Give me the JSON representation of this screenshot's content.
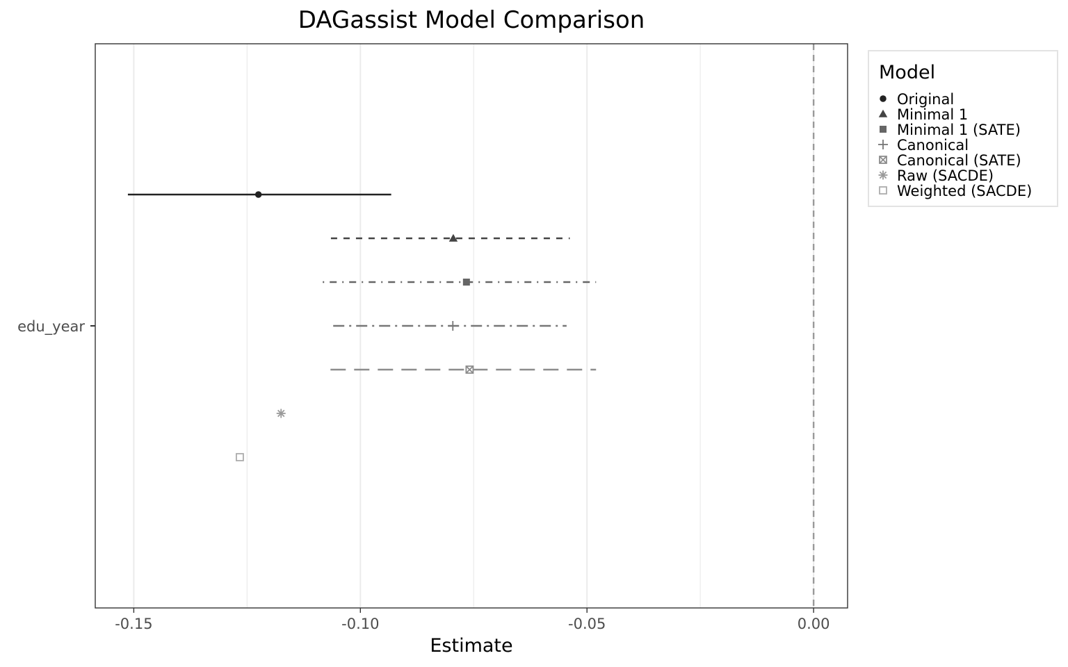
{
  "chart_data": {
    "type": "scatter",
    "title": "DAGassist Model Comparison",
    "xlabel": "Estimate",
    "ylabel": "",
    "xlim": [
      -0.1585,
      0.0075
    ],
    "xticks": [
      -0.15,
      -0.1,
      -0.05,
      0.0
    ],
    "xtick_labels": [
      "-0.15",
      "-0.10",
      "-0.05",
      "0.00"
    ],
    "categories": [
      "edu_year"
    ],
    "grid": true,
    "reference_line": {
      "x": 0.0,
      "style": "dashed",
      "color": "#9a9a9a"
    },
    "legend": {
      "title": "Model",
      "position": "right"
    },
    "series": [
      {
        "name": "Original",
        "estimate": -0.1225,
        "ci": [
          -0.1513,
          -0.0932
        ],
        "shape": "circle",
        "line": "solid",
        "color": "#222222"
      },
      {
        "name": "Minimal 1",
        "estimate": -0.0795,
        "ci": [
          -0.1065,
          -0.0538
        ],
        "shape": "triangle",
        "line": "dashed",
        "color": "#444444"
      },
      {
        "name": "Minimal 1 (SATE)",
        "estimate": -0.0766,
        "ci": [
          -0.1083,
          -0.048
        ],
        "shape": "square-filled",
        "line": "dotdash",
        "color": "#666666"
      },
      {
        "name": "Canonical",
        "estimate": -0.0796,
        "ci": [
          -0.106,
          -0.0545
        ],
        "shape": "plus",
        "line": "longdashdot",
        "color": "#777777"
      },
      {
        "name": "Canonical (SATE)",
        "estimate": -0.0759,
        "ci": [
          -0.1066,
          -0.048
        ],
        "shape": "square-cross",
        "line": "longdash",
        "color": "#8c8c8c"
      },
      {
        "name": "Raw (SACDE)",
        "estimate": -0.1175,
        "ci": null,
        "shape": "asterisk",
        "line": "none",
        "color": "#9a9a9a"
      },
      {
        "name": "Weighted (SACDE)",
        "estimate": -0.1266,
        "ci": null,
        "shape": "square-open",
        "line": "none",
        "color": "#acacac"
      }
    ]
  }
}
